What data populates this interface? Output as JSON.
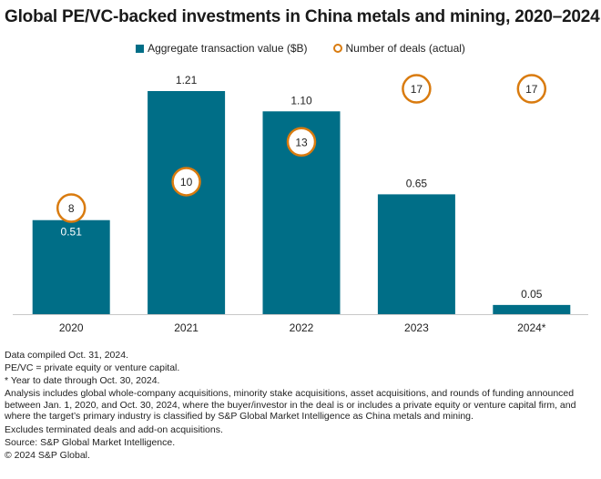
{
  "chart_data": {
    "type": "bar",
    "title": "Global PE/VC-backed investments in China metals and mining, 2020–2024",
    "categories": [
      "2020",
      "2021",
      "2022",
      "2023",
      "2024*"
    ],
    "series": [
      {
        "name": "Aggregate transaction value ($B)",
        "kind": "bar",
        "color": "#006e87",
        "values": [
          0.51,
          1.21,
          1.1,
          0.65,
          0.05
        ],
        "labels": [
          "0.51",
          "1.21",
          "1.10",
          "0.65",
          "0.05"
        ]
      },
      {
        "name": "Number of deals (actual)",
        "kind": "circle-marker",
        "color": "#d97b0f",
        "values": [
          8,
          10,
          13,
          17,
          17
        ],
        "labels": [
          "8",
          "10",
          "13",
          "17",
          "17"
        ]
      }
    ],
    "xlabel": "",
    "ylabel": "",
    "ylim": [
      0,
      1.21
    ],
    "y2lim": [
      0,
      17
    ],
    "grid": false,
    "legend_position": "top-center"
  },
  "legend": {
    "bar_label": "Aggregate transaction value ($B)",
    "circle_label": "Number of deals (actual)"
  },
  "notes": [
    "Data compiled Oct. 31, 2024.",
    "PE/VC = private equity or venture capital.",
    "* Year to date through Oct. 30, 2024.",
    "Analysis includes global whole-company acquisitions, minority stake acquisitions, asset acquisitions, and rounds of funding announced between Jan. 1, 2020, and Oct. 30, 2024, where the buyer/investor in the deal is or includes a private equity or venture capital firm, and where the target’s primary industry is classified by S&P Global Market Intelligence as China metals and mining.",
    "Excludes terminated deals and add-on acquisitions.",
    "Source: S&P Global Market Intelligence.",
    "© 2024 S&P Global."
  ]
}
